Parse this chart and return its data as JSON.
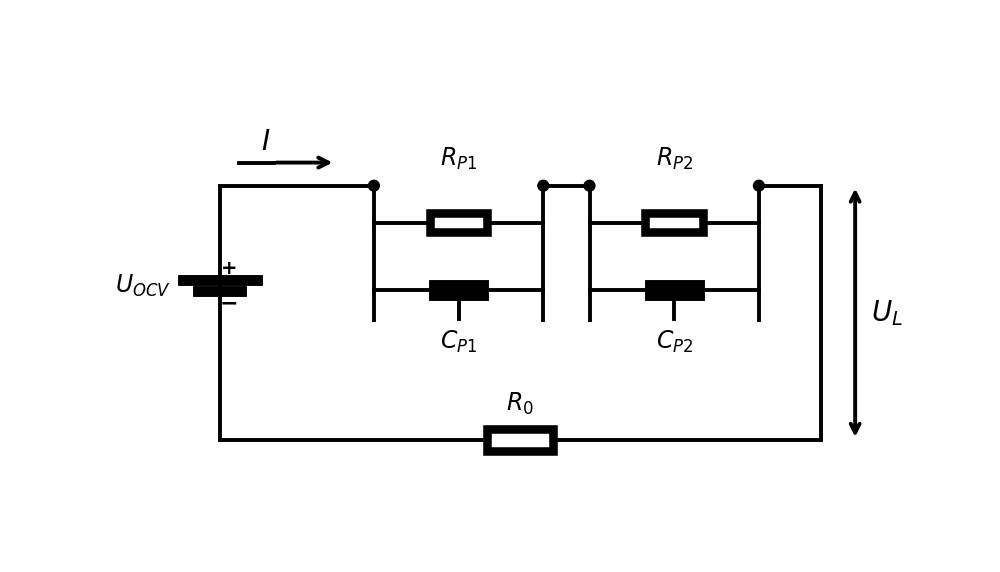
{
  "bg_color": "#ffffff",
  "line_color": "#000000",
  "line_width": 2.8,
  "fig_width": 10.0,
  "fig_height": 5.72,
  "labels": {
    "I": "$I$",
    "R_P1": "$R_{P1}$",
    "R_P2": "$R_{P2}$",
    "C_P1": "$C_{P1}$",
    "C_P2": "$C_{P2}$",
    "U_OCV": "$U_{OCV}$",
    "R_0": "$R_0$",
    "U_L": "$U_L$"
  },
  "font_size": 17
}
